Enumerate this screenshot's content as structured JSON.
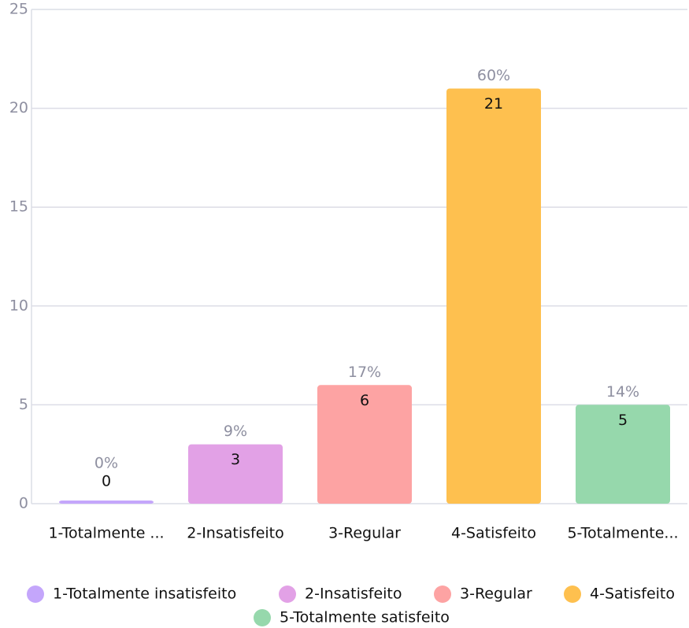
{
  "chart_data": {
    "type": "bar",
    "categories": [
      "1-Totalmente insatisfeito",
      "2-Insatisfeito",
      "3-Regular",
      "4-Satisfeito",
      "5-Totalmente satisfeito"
    ],
    "category_labels": [
      "1-Totalmente ...",
      "2-Insatisfeito",
      "3-Regular",
      "4-Satisfeito",
      "5-Totalmente..."
    ],
    "values": [
      0,
      3,
      6,
      21,
      5
    ],
    "percent_labels": [
      "0%",
      "9%",
      "17%",
      "60%",
      "14%"
    ],
    "colors": [
      "#c4a6fb",
      "#e2a1e6",
      "#fda3a3",
      "#fec04f",
      "#96d8ac"
    ],
    "ylim": [
      0,
      25
    ],
    "yticks": [
      0,
      5,
      10,
      15,
      20,
      25
    ],
    "grid": true,
    "legend": "bottom"
  }
}
